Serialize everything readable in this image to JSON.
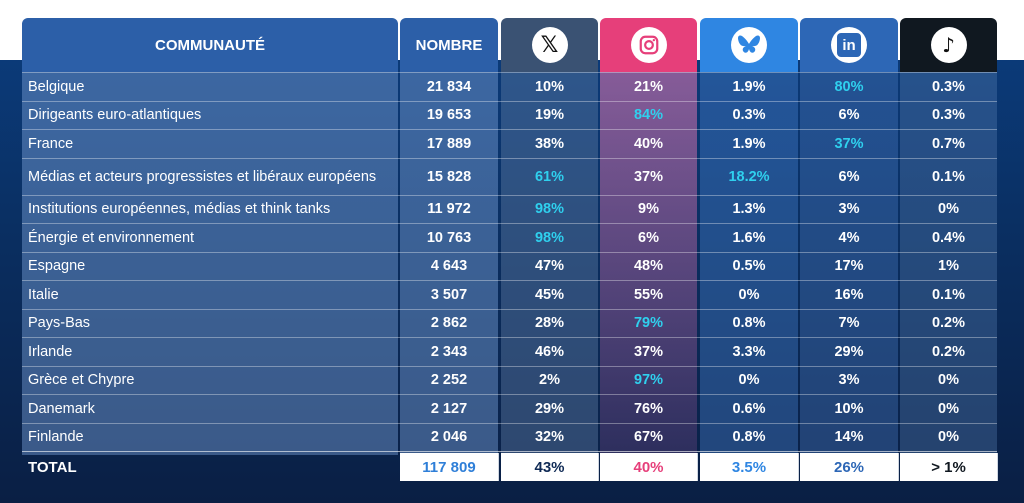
{
  "header": {
    "communaute": "COMMUNAUTÉ",
    "nombre": "NOMBRE",
    "platforms": [
      {
        "icon": "x-logo-icon",
        "glyph": "𝕏"
      },
      {
        "icon": "instagram-logo-icon"
      },
      {
        "icon": "bluesky-logo-icon"
      },
      {
        "icon": "linkedin-logo-icon",
        "glyph": "in"
      },
      {
        "icon": "tiktok-logo-icon",
        "glyph": "♪"
      }
    ]
  },
  "rows": [
    {
      "name": "Belgique",
      "nombre": "21 834",
      "x": "10%",
      "ig": "21%",
      "bs": "1.9%",
      "li": "80%",
      "tt": "0.3%",
      "hi": "li"
    },
    {
      "name": "Dirigeants euro-atlantiques",
      "nombre": "19 653",
      "x": "19%",
      "ig": "84%",
      "bs": "0.3%",
      "li": "6%",
      "tt": "0.3%",
      "hi": "ig"
    },
    {
      "name": "France",
      "nombre": "17 889",
      "x": "38%",
      "ig": "40%",
      "bs": "1.9%",
      "li": "37%",
      "tt": "0.7%",
      "hi": "li"
    },
    {
      "name": "Médias et acteurs progressistes et libéraux européens",
      "nombre": "15 828",
      "x": "61%",
      "ig": "37%",
      "bs": "18.2%",
      "li": "6%",
      "tt": "0.1%",
      "hi": "x,bs"
    },
    {
      "name": "Institutions européennes, médias et think tanks",
      "nombre": "11 972",
      "x": "98%",
      "ig": "9%",
      "bs": "1.3%",
      "li": "3%",
      "tt": "0%",
      "hi": "x"
    },
    {
      "name": "Énergie et environnement",
      "nombre": "10 763",
      "x": "98%",
      "ig": "6%",
      "bs": "1.6%",
      "li": "4%",
      "tt": "0.4%",
      "hi": "x"
    },
    {
      "name": "Espagne",
      "nombre": "4 643",
      "x": "47%",
      "ig": "48%",
      "bs": "0.5%",
      "li": "17%",
      "tt": "1%",
      "hi": ""
    },
    {
      "name": "Italie",
      "nombre": "3 507",
      "x": "45%",
      "ig": "55%",
      "bs": "0%",
      "li": "16%",
      "tt": "0.1%",
      "hi": ""
    },
    {
      "name": "Pays-Bas",
      "nombre": "2 862",
      "x": "28%",
      "ig": "79%",
      "bs": "0.8%",
      "li": "7%",
      "tt": "0.2%",
      "hi": "ig"
    },
    {
      "name": "Irlande",
      "nombre": "2 343",
      "x": "46%",
      "ig": "37%",
      "bs": "3.3%",
      "li": "29%",
      "tt": "0.2%",
      "hi": ""
    },
    {
      "name": "Grèce et Chypre",
      "nombre": "2 252",
      "x": "2%",
      "ig": "97%",
      "bs": "0%",
      "li": "3%",
      "tt": "0%",
      "hi": "ig"
    },
    {
      "name": "Danemark",
      "nombre": "2 127",
      "x": "29%",
      "ig": "76%",
      "bs": "0.6%",
      "li": "10%",
      "tt": "0%",
      "hi": ""
    },
    {
      "name": "Finlande",
      "nombre": "2 046",
      "x": "32%",
      "ig": "67%",
      "bs": "0.8%",
      "li": "14%",
      "tt": "0%",
      "hi": ""
    }
  ],
  "total": {
    "label": "TOTAL",
    "nombre": "117 809",
    "x": "43%",
    "ig": "40%",
    "bs": "3.5%",
    "li": "26%",
    "tt": "> 1%"
  },
  "colors": {
    "highlight": "#2fd0ee",
    "instagram": "#e63f7a",
    "bluesky": "#2f86e2",
    "linkedin": "#2d67b6",
    "x": "#3a5273",
    "tiktok": "#101820"
  }
}
